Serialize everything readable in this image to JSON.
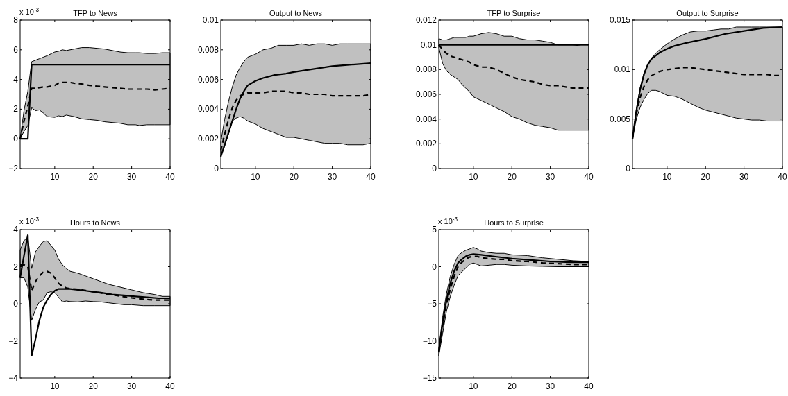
{
  "chart_data": [
    {
      "type": "line",
      "title": "TFP to News",
      "annotations": [
        "x 10$^{-3}$"
      ],
      "xlim": [
        1,
        40
      ],
      "xticks": [
        10,
        20,
        30,
        40
      ],
      "ylim": [
        -2,
        8
      ],
      "yticks": [
        -2,
        0,
        2,
        4,
        6,
        8
      ],
      "series": [
        {
          "color": "#000000",
          "line_style": "solid",
          "x": [
            1,
            3,
            4,
            40
          ],
          "values": [
            0,
            0,
            5,
            5
          ]
        },
        {
          "color": "#000000",
          "line_style": "dashed",
          "x": [
            1,
            2,
            3,
            4,
            5,
            6,
            7,
            8,
            10,
            11,
            12,
            13,
            14,
            15,
            17,
            19,
            21,
            23,
            25,
            27,
            29,
            31,
            32,
            34,
            36,
            38,
            40
          ],
          "values": [
            0,
            1.2,
            2.2,
            3.4,
            3.4,
            3.45,
            3.5,
            3.5,
            3.6,
            3.75,
            3.8,
            3.8,
            3.8,
            3.75,
            3.7,
            3.6,
            3.55,
            3.5,
            3.45,
            3.4,
            3.35,
            3.35,
            3.35,
            3.35,
            3.3,
            3.35,
            3.4
          ],
          "lower": [
            0,
            0.5,
            0.9,
            2.1,
            1.9,
            1.95,
            1.75,
            1.5,
            1.45,
            1.55,
            1.5,
            1.6,
            1.55,
            1.5,
            1.35,
            1.3,
            1.25,
            1.15,
            1.1,
            1.05,
            0.95,
            0.95,
            0.9,
            0.95,
            0.95,
            0.95,
            0.95
          ],
          "upper": [
            0,
            1.9,
            3.2,
            5.2,
            5.3,
            5.4,
            5.5,
            5.6,
            5.85,
            5.9,
            6.0,
            5.95,
            6.0,
            6.05,
            6.15,
            6.15,
            6.1,
            6.05,
            5.95,
            5.85,
            5.8,
            5.8,
            5.8,
            5.75,
            5.75,
            5.8,
            5.8
          ]
        }
      ]
    },
    {
      "type": "line",
      "title": "Output to News",
      "xlim": [
        1,
        40
      ],
      "xticks": [
        10,
        20,
        30,
        40
      ],
      "ylim": [
        0,
        0.01
      ],
      "yticks": [
        0,
        0.002,
        0.004,
        0.006,
        0.008,
        0.01
      ],
      "series": [
        {
          "color": "#000000",
          "line_style": "solid",
          "x": [
            1,
            2,
            3,
            4,
            5,
            6,
            7,
            8,
            10,
            12,
            15,
            18,
            20,
            25,
            30,
            35,
            40
          ],
          "values": [
            0.0008,
            0.0016,
            0.0024,
            0.0032,
            0.004,
            0.0047,
            0.0052,
            0.0056,
            0.0059,
            0.0061,
            0.0063,
            0.0064,
            0.0065,
            0.0067,
            0.0069,
            0.007,
            0.0071
          ]
        },
        {
          "color": "#000000",
          "line_style": "dashed",
          "x": [
            1,
            2,
            3,
            4,
            5,
            6,
            7,
            8,
            10,
            12,
            14,
            16,
            18,
            20,
            22,
            24,
            26,
            28,
            30,
            32,
            34,
            36,
            38,
            40
          ],
          "values": [
            0.0012,
            0.0023,
            0.0033,
            0.0041,
            0.0046,
            0.0049,
            0.005,
            0.0051,
            0.0051,
            0.0051,
            0.0052,
            0.0052,
            0.0052,
            0.0051,
            0.0051,
            0.005,
            0.005,
            0.005,
            0.0049,
            0.0049,
            0.0049,
            0.0049,
            0.0049,
            0.005
          ],
          "lower": [
            0.0008,
            0.0015,
            0.0023,
            0.0032,
            0.0034,
            0.0035,
            0.0034,
            0.0032,
            0.003,
            0.0027,
            0.0025,
            0.0023,
            0.0021,
            0.0021,
            0.002,
            0.0019,
            0.0018,
            0.0017,
            0.0017,
            0.0017,
            0.0016,
            0.0016,
            0.0016,
            0.0017
          ],
          "upper": [
            0.0018,
            0.0033,
            0.0045,
            0.0055,
            0.0063,
            0.0068,
            0.0072,
            0.0075,
            0.0077,
            0.008,
            0.0081,
            0.0083,
            0.0083,
            0.0083,
            0.0084,
            0.0083,
            0.0084,
            0.0084,
            0.0083,
            0.0084,
            0.0084,
            0.0084,
            0.0084,
            0.0084
          ]
        }
      ]
    },
    {
      "type": "line",
      "title": "TFP to Surprise",
      "xlim": [
        1,
        40
      ],
      "xticks": [
        10,
        20,
        30,
        40
      ],
      "ylim": [
        0,
        0.012
      ],
      "yticks": [
        0,
        0.002,
        0.004,
        0.006,
        0.008,
        0.01,
        0.012
      ],
      "series": [
        {
          "color": "#000000",
          "line_style": "solid",
          "x": [
            1,
            40
          ],
          "values": [
            0.01,
            0.01
          ]
        },
        {
          "color": "#000000",
          "line_style": "dashed",
          "x": [
            1,
            2,
            3,
            4,
            5,
            6,
            7,
            8,
            9,
            10,
            12,
            14,
            16,
            18,
            20,
            22,
            24,
            26,
            28,
            30,
            32,
            34,
            36,
            38,
            40
          ],
          "values": [
            0.01,
            0.0096,
            0.0093,
            0.0091,
            0.009,
            0.0089,
            0.0088,
            0.0087,
            0.0086,
            0.0084,
            0.0082,
            0.0082,
            0.008,
            0.0077,
            0.0074,
            0.0072,
            0.0071,
            0.007,
            0.0068,
            0.0067,
            0.0067,
            0.0066,
            0.0065,
            0.0065,
            0.0065
          ],
          "lower": [
            0.0098,
            0.0085,
            0.0079,
            0.0076,
            0.0074,
            0.0072,
            0.0068,
            0.0065,
            0.0062,
            0.0058,
            0.0055,
            0.0052,
            0.0049,
            0.0046,
            0.0042,
            0.004,
            0.0037,
            0.0035,
            0.0034,
            0.0033,
            0.0031,
            0.0031,
            0.0031,
            0.0031,
            0.0031
          ],
          "upper": [
            0.0105,
            0.0104,
            0.0104,
            0.0105,
            0.0106,
            0.0106,
            0.0106,
            0.0106,
            0.0107,
            0.0107,
            0.0109,
            0.011,
            0.0109,
            0.0107,
            0.0107,
            0.0105,
            0.0104,
            0.0104,
            0.0103,
            0.0102,
            0.01,
            0.01,
            0.01,
            0.0099,
            0.0099
          ]
        }
      ]
    },
    {
      "type": "line",
      "title": "Output to Surprise",
      "xlim": [
        1,
        40
      ],
      "xticks": [
        10,
        20,
        30,
        40
      ],
      "ylim": [
        0,
        0.015
      ],
      "yticks": [
        0,
        0.005,
        0.01,
        0.015
      ],
      "series": [
        {
          "color": "#000000",
          "line_style": "solid",
          "x": [
            1,
            2,
            3,
            4,
            5,
            6,
            7,
            8,
            10,
            12,
            15,
            20,
            25,
            30,
            35,
            40
          ],
          "values": [
            0.003,
            0.0058,
            0.008,
            0.0095,
            0.0105,
            0.0111,
            0.0114,
            0.0117,
            0.0121,
            0.0124,
            0.0127,
            0.0131,
            0.0136,
            0.0139,
            0.0142,
            0.0143
          ]
        },
        {
          "color": "#000000",
          "line_style": "dashed",
          "x": [
            1,
            2,
            3,
            4,
            5,
            6,
            7,
            8,
            10,
            12,
            14,
            16,
            18,
            20,
            22,
            24,
            26,
            28,
            30,
            32,
            34,
            36,
            38,
            40
          ],
          "values": [
            0.003,
            0.0055,
            0.0072,
            0.0083,
            0.009,
            0.0094,
            0.0096,
            0.0098,
            0.01,
            0.0101,
            0.0102,
            0.0102,
            0.0101,
            0.01,
            0.0099,
            0.0098,
            0.0097,
            0.0096,
            0.0095,
            0.0095,
            0.0095,
            0.0095,
            0.0094,
            0.0094
          ],
          "lower": [
            0.003,
            0.005,
            0.0062,
            0.007,
            0.0076,
            0.0079,
            0.0079,
            0.0078,
            0.0074,
            0.0073,
            0.007,
            0.0066,
            0.0062,
            0.0059,
            0.0057,
            0.0055,
            0.0053,
            0.0051,
            0.005,
            0.0049,
            0.0049,
            0.0048,
            0.0048,
            0.0048
          ],
          "upper": [
            0.003,
            0.006,
            0.0082,
            0.0097,
            0.0106,
            0.0112,
            0.0116,
            0.012,
            0.0126,
            0.0131,
            0.0135,
            0.0138,
            0.0139,
            0.0139,
            0.014,
            0.0141,
            0.0141,
            0.0143,
            0.0143,
            0.0143,
            0.0143,
            0.0143,
            0.0143,
            0.0143
          ]
        }
      ]
    },
    {
      "type": "line",
      "title": "Hours to News",
      "annotations": [
        "x 10$^{-3}$"
      ],
      "xlim": [
        1,
        40
      ],
      "xticks": [
        10,
        20,
        30,
        40
      ],
      "ylim": [
        -4,
        4
      ],
      "yticks": [
        -4,
        -2,
        0,
        2,
        4
      ],
      "series": [
        {
          "color": "#000000",
          "line_style": "solid",
          "x": [
            1,
            2,
            3,
            4,
            5,
            6,
            7,
            8,
            9,
            10,
            11,
            12,
            14,
            16,
            18,
            20,
            22,
            25,
            28,
            31,
            34,
            37,
            40
          ],
          "values": [
            1.4,
            2.6,
            3.7,
            -2.8,
            -1.9,
            -0.9,
            -0.2,
            0.2,
            0.5,
            0.7,
            0.8,
            0.8,
            0.8,
            0.75,
            0.7,
            0.65,
            0.6,
            0.5,
            0.45,
            0.4,
            0.35,
            0.3,
            0.3
          ]
        },
        {
          "color": "#000000",
          "line_style": "dashed",
          "x": [
            1,
            2,
            3,
            4,
            5,
            6,
            7,
            8,
            9,
            10,
            11,
            12,
            13,
            14,
            16,
            18,
            20,
            22,
            24,
            26,
            28,
            30,
            33,
            36,
            38,
            40
          ],
          "values": [
            2.1,
            2.1,
            2.0,
            0.7,
            1.2,
            1.5,
            1.7,
            1.75,
            1.65,
            1.4,
            1.1,
            0.95,
            0.85,
            0.82,
            0.78,
            0.72,
            0.65,
            0.58,
            0.5,
            0.45,
            0.38,
            0.32,
            0.25,
            0.2,
            0.2,
            0.2
          ],
          "lower": [
            1.4,
            1.4,
            0.9,
            -0.9,
            -0.3,
            0.1,
            0.2,
            0.6,
            0.65,
            0.6,
            0.35,
            0.1,
            0.15,
            0.12,
            0.1,
            0.15,
            0.12,
            0.1,
            0.05,
            0.0,
            -0.05,
            -0.05,
            -0.1,
            -0.1,
            -0.1,
            -0.1
          ],
          "upper": [
            2.9,
            3.4,
            3.6,
            1.9,
            2.8,
            3.1,
            3.35,
            3.4,
            3.15,
            2.9,
            2.4,
            2.1,
            1.9,
            1.75,
            1.65,
            1.5,
            1.35,
            1.2,
            1.05,
            0.95,
            0.85,
            0.75,
            0.6,
            0.5,
            0.4,
            0.4
          ]
        }
      ]
    },
    {
      "type": "line",
      "title": "Hours to Surprise",
      "annotations": [
        "x 10$^{-3}$"
      ],
      "xlim": [
        1,
        40
      ],
      "xticks": [
        10,
        20,
        30,
        40
      ],
      "ylim": [
        -15,
        5
      ],
      "yticks": [
        -15,
        -10,
        -5,
        0,
        5
      ],
      "series": [
        {
          "color": "#000000",
          "line_style": "solid",
          "x": [
            1,
            2,
            3,
            4,
            5,
            6,
            7,
            8,
            9,
            10,
            12,
            15,
            20,
            25,
            30,
            35,
            40
          ],
          "values": [
            -11.5,
            -7.5,
            -4.5,
            -2.2,
            -0.6,
            0.5,
            1.0,
            1.4,
            1.6,
            1.7,
            1.6,
            1.4,
            1.1,
            0.9,
            0.7,
            0.6,
            0.6
          ]
        },
        {
          "color": "#000000",
          "line_style": "dashed",
          "x": [
            1,
            2,
            3,
            4,
            5,
            6,
            7,
            8,
            9,
            10,
            11,
            12,
            14,
            16,
            18,
            20,
            24,
            28,
            32,
            36,
            40
          ],
          "values": [
            -11.5,
            -8,
            -5,
            -3,
            -1.3,
            0,
            0.6,
            1.0,
            1.3,
            1.4,
            1.4,
            1.2,
            1.1,
            1.0,
            1.0,
            0.8,
            0.7,
            0.5,
            0.4,
            0.3,
            0.3
          ],
          "lower": [
            -12,
            -9,
            -6,
            -4,
            -2.5,
            -1.2,
            -0.7,
            -0.2,
            0.3,
            0.5,
            0.3,
            0.1,
            0.2,
            0.3,
            0.3,
            0.2,
            0.1,
            0.05,
            0,
            0,
            0
          ],
          "upper": [
            -11,
            -6.8,
            -3.6,
            -1.3,
            0.3,
            1.5,
            1.9,
            2.2,
            2.4,
            2.6,
            2.4,
            2.1,
            1.9,
            1.8,
            1.8,
            1.6,
            1.5,
            1.2,
            1.0,
            0.8,
            0.7
          ]
        }
      ]
    }
  ]
}
